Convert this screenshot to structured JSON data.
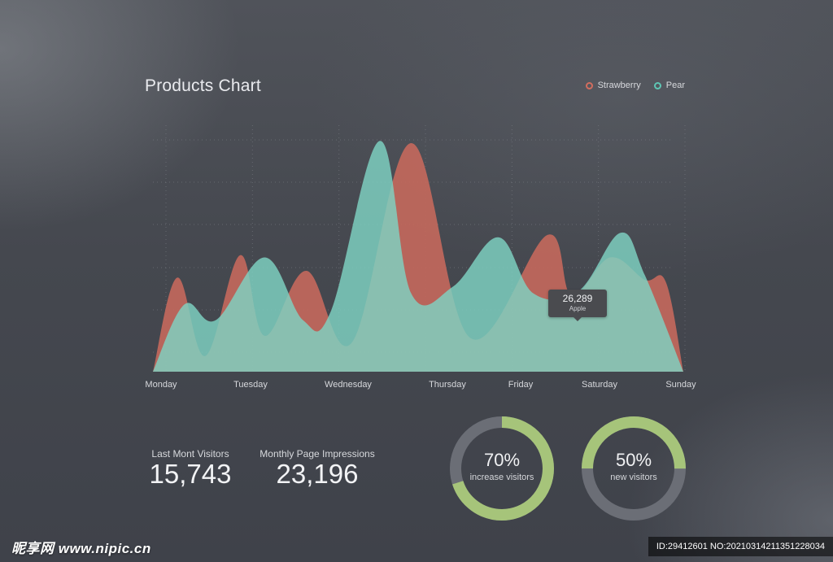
{
  "title": "Products Chart",
  "legend": [
    {
      "label": "Strawberry",
      "color": "#d26d5e"
    },
    {
      "label": "Pear",
      "color": "#5ec6b4"
    }
  ],
  "colors": {
    "strawberry_fill": "#c2685c",
    "pear_fill": "#7fd3c3",
    "grid": "#8a8d94",
    "ring_track": "#6b6e76",
    "ring_progress": "#a6c47a"
  },
  "tooltip": {
    "value": "26,289",
    "label": "Apple"
  },
  "chart_data": {
    "type": "area",
    "title": "Products Chart",
    "x_labels": [
      "Monday",
      "Tuesday",
      "Wednesday",
      "Thursday",
      "Friday",
      "Saturday",
      "Sunday"
    ],
    "grid": true,
    "legend_position": "top-right",
    "y_range": [
      0,
      100
    ],
    "series": [
      {
        "name": "Strawberry",
        "points": [
          [
            0.0,
            0
          ],
          [
            0.35,
            42
          ],
          [
            0.75,
            7
          ],
          [
            1.25,
            52
          ],
          [
            1.6,
            16
          ],
          [
            2.2,
            45
          ],
          [
            2.85,
            13
          ],
          [
            3.7,
            102
          ],
          [
            4.55,
            15
          ],
          [
            5.65,
            61
          ],
          [
            6.0,
            34
          ],
          [
            6.55,
            51
          ],
          [
            7.05,
            41
          ],
          [
            7.35,
            40
          ],
          [
            7.6,
            0
          ]
        ]
      },
      {
        "name": "Pear",
        "points": [
          [
            0.0,
            0
          ],
          [
            0.45,
            30
          ],
          [
            0.9,
            23
          ],
          [
            1.6,
            51
          ],
          [
            2.15,
            23
          ],
          [
            2.55,
            27
          ],
          [
            3.25,
            103
          ],
          [
            3.7,
            35
          ],
          [
            4.3,
            38
          ],
          [
            4.95,
            60
          ],
          [
            5.45,
            35
          ],
          [
            6.1,
            36
          ],
          [
            6.7,
            62
          ],
          [
            7.05,
            43
          ],
          [
            7.6,
            0
          ]
        ]
      }
    ]
  },
  "stats": [
    {
      "label": "Last Mont Visitors",
      "value": "15,743"
    },
    {
      "label": "Monthly Page Impressions",
      "value": "23,196"
    }
  ],
  "rings": [
    {
      "percent": 70,
      "value": "70%",
      "label": "increase visitors"
    },
    {
      "percent": 50,
      "value": "50%",
      "label": "new visitors"
    }
  ],
  "watermark": {
    "left": "昵享网 www.nipic.cn",
    "right": "ID:29412601 NO:20210314211351228034"
  }
}
